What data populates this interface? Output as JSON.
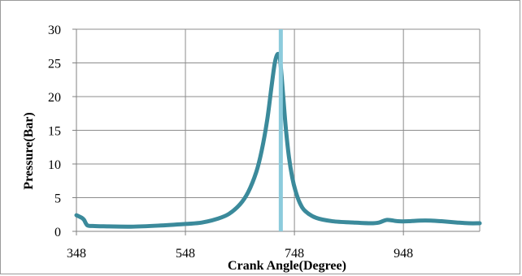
{
  "chart_data": {
    "type": "line",
    "xlabel": "Crank Angle(Degree)",
    "ylabel": "Pressure(Bar)",
    "xlim": [
      348,
      1088
    ],
    "ylim": [
      0,
      30
    ],
    "x_ticks": [
      "348",
      "548",
      "748",
      "948"
    ],
    "y_ticks": [
      "0",
      "5",
      "10",
      "15",
      "20",
      "25",
      "30"
    ],
    "grid": true,
    "legend": "none",
    "series": [
      {
        "color": "#3b8a9b",
        "x": [
          348,
          358,
          362,
          368,
          378,
          398,
          448,
          498,
          548,
          578,
          608,
          628,
          648,
          663,
          678,
          688,
          698,
          706,
          712,
          717,
          721,
          724,
          727,
          732,
          738,
          744,
          750,
          758,
          768,
          788,
          818,
          858,
          888,
          903,
          918,
          938,
          958,
          978,
          998,
          1018,
          1048,
          1068,
          1088
        ],
        "y": [
          2.4,
          2.0,
          1.7,
          0.9,
          0.8,
          0.75,
          0.7,
          0.85,
          1.1,
          1.3,
          1.9,
          2.6,
          4.0,
          5.8,
          8.8,
          12.0,
          16.5,
          21.5,
          25.0,
          26.3,
          25.8,
          23.5,
          20.5,
          15.5,
          11.0,
          8.0,
          6.0,
          4.2,
          3.0,
          2.0,
          1.5,
          1.3,
          1.2,
          1.3,
          1.7,
          1.5,
          1.5,
          1.6,
          1.6,
          1.5,
          1.3,
          1.2,
          1.2
        ]
      }
    ],
    "annotations": [
      {
        "type": "vertical-line",
        "x": 723,
        "color": "#8ccbdc"
      }
    ]
  }
}
